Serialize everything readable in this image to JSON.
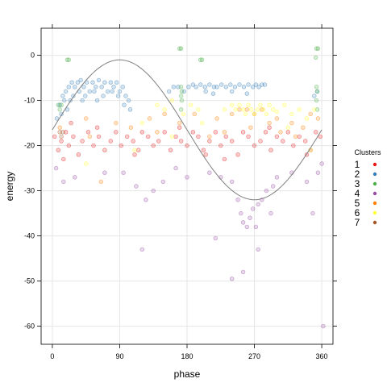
{
  "chart_data": {
    "type": "scatter",
    "xlabel": "phase",
    "ylabel": "energy",
    "xlim": [
      -15,
      375
    ],
    "ylim": [
      -64,
      6
    ],
    "x_ticks": [
      0,
      90,
      180,
      270,
      360
    ],
    "y_ticks": [
      0,
      -10,
      -20,
      -30,
      -40,
      -50,
      -60
    ],
    "x_tick_labels": [
      "0",
      "90",
      "180",
      "270",
      "360"
    ],
    "y_tick_labels": [
      "0",
      "-10",
      "-20",
      "-30",
      "-40",
      "-50",
      "-60"
    ],
    "grid": true,
    "legend": {
      "title": "Clusters",
      "placement": "right",
      "entries": [
        {
          "label": "1",
          "color": "#e41a1c"
        },
        {
          "label": "2",
          "color": "#377eb8"
        },
        {
          "label": "3",
          "color": "#4daf4a"
        },
        {
          "label": "4",
          "color": "#984ea3"
        },
        {
          "label": "5",
          "color": "#ff7f00"
        },
        {
          "label": "6",
          "color": "#ffff33"
        },
        {
          "label": "7",
          "color": "#a65628"
        }
      ]
    },
    "curve": {
      "function": "sine",
      "amplitude": 15.5,
      "offset": -16.5,
      "phase_units": "degrees",
      "color": "#7f7f7f"
    },
    "series": [
      {
        "name": "1",
        "color": "#e41a1c",
        "points": [
          [
            3,
            -18
          ],
          [
            8,
            -21
          ],
          [
            12,
            -19
          ],
          [
            18,
            -17
          ],
          [
            22,
            -20
          ],
          [
            28,
            -18
          ],
          [
            35,
            -22
          ],
          [
            40,
            -19
          ],
          [
            48,
            -17
          ],
          [
            55,
            -20
          ],
          [
            62,
            -18
          ],
          [
            70,
            -21
          ],
          [
            78,
            -19
          ],
          [
            85,
            -17
          ],
          [
            92,
            -20
          ],
          [
            100,
            -18
          ],
          [
            108,
            -19
          ],
          [
            115,
            -21
          ],
          [
            120,
            -17
          ],
          [
            128,
            -18
          ],
          [
            135,
            -20
          ],
          [
            142,
            -19
          ],
          [
            150,
            -17
          ],
          [
            158,
            -21
          ],
          [
            165,
            -18
          ],
          [
            172,
            -19
          ],
          [
            180,
            -20
          ],
          [
            188,
            -17
          ],
          [
            195,
            -18
          ],
          [
            202,
            -21
          ],
          [
            210,
            -19
          ],
          [
            218,
            -17
          ],
          [
            225,
            -20
          ],
          [
            232,
            -18
          ],
          [
            240,
            -19
          ],
          [
            248,
            -22
          ],
          [
            255,
            -17
          ],
          [
            262,
            -18
          ],
          [
            270,
            -20
          ],
          [
            278,
            -19
          ],
          [
            285,
            -17
          ],
          [
            292,
            -21
          ],
          [
            300,
            -18
          ],
          [
            308,
            -19
          ],
          [
            315,
            -17
          ],
          [
            322,
            -20
          ],
          [
            330,
            -18
          ],
          [
            338,
            -19
          ],
          [
            345,
            -21
          ],
          [
            352,
            -17
          ],
          [
            358,
            -18
          ],
          [
            15,
            -23
          ],
          [
            60,
            -16
          ],
          [
            110,
            -22
          ],
          [
            170,
            -16
          ],
          [
            230,
            -23
          ],
          [
            290,
            -16
          ],
          [
            340,
            -22
          ],
          [
            25,
            -15
          ],
          [
            205,
            -22
          ]
        ]
      },
      {
        "name": "2",
        "color": "#377eb8",
        "points": [
          [
            10,
            -11
          ],
          [
            14,
            -9
          ],
          [
            18,
            -8
          ],
          [
            22,
            -7
          ],
          [
            26,
            -6
          ],
          [
            30,
            -7
          ],
          [
            34,
            -6
          ],
          [
            38,
            -5.5
          ],
          [
            42,
            -7
          ],
          [
            46,
            -6
          ],
          [
            50,
            -8
          ],
          [
            54,
            -6
          ],
          [
            58,
            -7
          ],
          [
            62,
            -5.5
          ],
          [
            66,
            -7
          ],
          [
            70,
            -6
          ],
          [
            74,
            -8
          ],
          [
            78,
            -6
          ],
          [
            82,
            -7
          ],
          [
            86,
            -6
          ],
          [
            90,
            -8
          ],
          [
            94,
            -7
          ],
          [
            98,
            -9
          ],
          [
            102,
            -10
          ],
          [
            12,
            -13
          ],
          [
            20,
            -12
          ],
          [
            16,
            -10
          ],
          [
            28,
            -9
          ],
          [
            36,
            -8
          ],
          [
            44,
            -9
          ],
          [
            56,
            -8
          ],
          [
            68,
            -9
          ],
          [
            80,
            -8
          ],
          [
            88,
            -9
          ],
          [
            96,
            -11
          ],
          [
            104,
            -12
          ],
          [
            6,
            -14
          ],
          [
            24,
            -10
          ],
          [
            40,
            -10
          ],
          [
            60,
            -10
          ],
          [
            156,
            -8
          ],
          [
            162,
            -7
          ],
          [
            168,
            -7
          ],
          [
            176,
            -8
          ],
          [
            182,
            -7
          ],
          [
            188,
            -6.5
          ],
          [
            192,
            -7
          ],
          [
            198,
            -6.5
          ],
          [
            204,
            -7
          ],
          [
            210,
            -6.5
          ],
          [
            216,
            -7
          ],
          [
            220,
            -7
          ],
          [
            226,
            -6.5
          ],
          [
            232,
            -7
          ],
          [
            238,
            -6.5
          ],
          [
            244,
            -7
          ],
          [
            250,
            -6.5
          ],
          [
            256,
            -7
          ],
          [
            262,
            -6.5
          ],
          [
            268,
            -7
          ],
          [
            272,
            -6.5
          ],
          [
            276,
            -7
          ],
          [
            280,
            -6.5
          ],
          [
            284,
            -6.5
          ],
          [
            205,
            -8
          ],
          [
            215,
            -8.5
          ],
          [
            240,
            -8
          ],
          [
            260,
            -8.5
          ],
          [
            350,
            -9
          ],
          [
            354,
            -8
          ]
        ]
      },
      {
        "name": "3",
        "color": "#4daf4a",
        "points": [
          [
            20,
            -1
          ],
          [
            22,
            -1
          ],
          [
            170,
            1.5
          ],
          [
            172,
            1.5
          ],
          [
            198,
            -1
          ],
          [
            200,
            -1
          ],
          [
            353,
            1.5
          ],
          [
            355,
            1.5
          ],
          [
            352,
            -0.5
          ],
          [
            172,
            -7
          ],
          [
            173,
            -8
          ],
          [
            172,
            -9
          ],
          [
            173,
            -10
          ],
          [
            172,
            -12
          ],
          [
            8,
            -11
          ],
          [
            10,
            -12
          ],
          [
            12,
            -11
          ],
          [
            353,
            -7
          ],
          [
            354,
            -8
          ],
          [
            353,
            -10
          ],
          [
            354,
            -12
          ]
        ]
      },
      {
        "name": "4",
        "color": "#984ea3",
        "points": [
          [
            5,
            -25
          ],
          [
            30,
            -27
          ],
          [
            95,
            -26
          ],
          [
            112,
            -29
          ],
          [
            125,
            -32
          ],
          [
            135,
            -30
          ],
          [
            148,
            -28
          ],
          [
            165,
            -25
          ],
          [
            210,
            -26
          ],
          [
            225,
            -27
          ],
          [
            240,
            -28
          ],
          [
            248,
            -32
          ],
          [
            252,
            -35
          ],
          [
            255,
            -37
          ],
          [
            260,
            -38
          ],
          [
            264,
            -36
          ],
          [
            268,
            -34
          ],
          [
            272,
            -38
          ],
          [
            275,
            -33
          ],
          [
            280,
            -32
          ],
          [
            286,
            -30
          ],
          [
            292,
            -35
          ],
          [
            295,
            -29
          ],
          [
            300,
            -27
          ],
          [
            320,
            -26
          ],
          [
            340,
            -28
          ],
          [
            360,
            -24
          ],
          [
            120,
            -43
          ],
          [
            275,
            -43
          ],
          [
            218,
            -40.5
          ],
          [
            240,
            -49.5
          ],
          [
            255,
            -48
          ],
          [
            348,
            -35
          ],
          [
            15,
            -28
          ],
          [
            70,
            -26
          ],
          [
            180,
            -27
          ],
          [
            355,
            -26
          ],
          [
            362,
            -60
          ]
        ]
      },
      {
        "name": "5",
        "color": "#ff7f00",
        "points": [
          [
            10,
            -16
          ],
          [
            45,
            -14
          ],
          [
            85,
            -15
          ],
          [
            130,
            -14
          ],
          [
            150,
            -13
          ],
          [
            170,
            -15
          ],
          [
            190,
            -13
          ],
          [
            220,
            -14
          ],
          [
            240,
            -13
          ],
          [
            250,
            -12
          ],
          [
            260,
            -12
          ],
          [
            270,
            -13
          ],
          [
            280,
            -12
          ],
          [
            300,
            -14
          ],
          [
            320,
            -15
          ],
          [
            345,
            -13
          ],
          [
            355,
            -14
          ],
          [
            50,
            -18
          ],
          [
            140,
            -17
          ],
          [
            210,
            -18
          ],
          [
            265,
            -16
          ],
          [
            305,
            -17
          ],
          [
            335,
            -16
          ],
          [
            65,
            -28
          ],
          [
            105,
            -16
          ],
          [
            230,
            -17
          ],
          [
            290,
            -15
          ],
          [
            325,
            -18
          ]
        ]
      },
      {
        "name": "6",
        "color": "#ffff33",
        "points": [
          [
            140,
            -11
          ],
          [
            150,
            -12
          ],
          [
            160,
            -10
          ],
          [
            175,
            -13
          ],
          [
            185,
            -11
          ],
          [
            195,
            -12
          ],
          [
            230,
            -12
          ],
          [
            240,
            -11
          ],
          [
            245,
            -12
          ],
          [
            250,
            -11
          ],
          [
            255,
            -12
          ],
          [
            258,
            -13
          ],
          [
            262,
            -11
          ],
          [
            266,
            -12
          ],
          [
            270,
            -13
          ],
          [
            274,
            -12
          ],
          [
            278,
            -11
          ],
          [
            282,
            -12
          ],
          [
            286,
            -13
          ],
          [
            290,
            -11
          ],
          [
            295,
            -12
          ],
          [
            300,
            -12.5
          ],
          [
            310,
            -11
          ],
          [
            320,
            -13
          ],
          [
            330,
            -12
          ],
          [
            340,
            -14
          ],
          [
            350,
            -12
          ],
          [
            45,
            -24
          ],
          [
            110,
            -21
          ],
          [
            160,
            -18
          ],
          [
            120,
            -15
          ],
          [
            200,
            -15
          ],
          [
            315,
            -16
          ],
          [
            345,
            -21
          ]
        ]
      },
      {
        "name": "7",
        "color": "#a65628",
        "points": [
          [
            10,
            -17
          ],
          [
            12,
            -18
          ],
          [
            14,
            -17
          ]
        ]
      }
    ]
  }
}
